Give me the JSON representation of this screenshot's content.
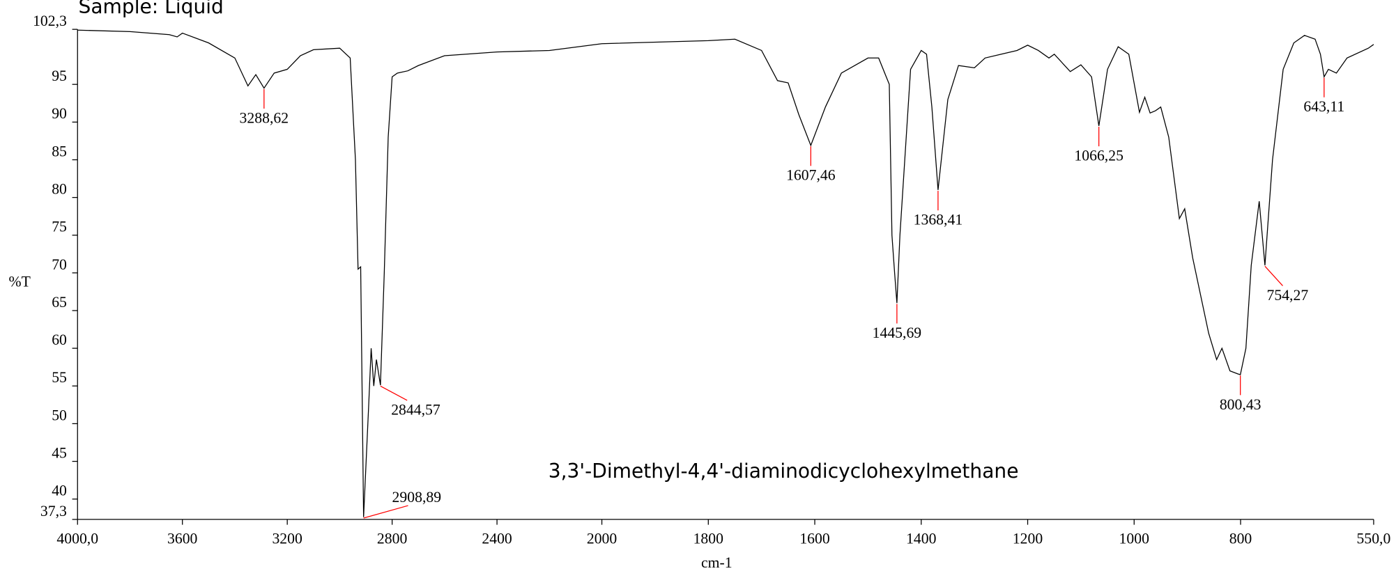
{
  "chart_data": {
    "type": "line",
    "title": "Sample: Liquid",
    "annotation": "3,3'-Dimethyl-4,4'-diaminodicyclohexylmethane",
    "xlabel": "cm-1",
    "ylabel": "%T",
    "xlim": [
      4000,
      550
    ],
    "x_scale_break": 2000,
    "ylim": [
      37.3,
      102.3
    ],
    "xticks": [
      {
        "value": 4000,
        "label": "4000,0"
      },
      3600,
      3200,
      2800,
      2400,
      2000,
      1800,
      1600,
      1400,
      1200,
      1000,
      800,
      {
        "value": 550,
        "label": "550,0"
      }
    ],
    "yticks": [
      {
        "value": 37.3,
        "label": "37,3"
      },
      40,
      45,
      50,
      55,
      60,
      65,
      70,
      75,
      80,
      85,
      90,
      95,
      {
        "value": 102.3,
        "label": "102,3"
      }
    ],
    "series": [
      {
        "color": "#000000",
        "x": [
          4000,
          3800,
          3650,
          3620,
          3600,
          3500,
          3400,
          3350,
          3320,
          3288.62,
          3250,
          3200,
          3150,
          3100,
          3000,
          2960,
          2940,
          2930,
          2920,
          2908.89,
          2890,
          2880,
          2870,
          2860,
          2844.57,
          2830,
          2815,
          2800,
          2780,
          2740,
          2700,
          2600,
          2400,
          2200,
          2000,
          1800,
          1750,
          1700,
          1670,
          1650,
          1630,
          1607.46,
          1580,
          1550,
          1500,
          1480,
          1460,
          1455,
          1450,
          1445.69,
          1440,
          1420,
          1400,
          1390,
          1380,
          1368.41,
          1350,
          1330,
          1300,
          1280,
          1250,
          1220,
          1200,
          1180,
          1160,
          1150,
          1120,
          1100,
          1080,
          1066.25,
          1050,
          1030,
          1010,
          990,
          980,
          970,
          960,
          950,
          935,
          915,
          905,
          890,
          860,
          845,
          835,
          820,
          805,
          800.43,
          790,
          780,
          765,
          754.27,
          740,
          720,
          700,
          680,
          660,
          650,
          643.11,
          635,
          620,
          600,
          560,
          550
        ],
        "values": [
          102.2,
          102.0,
          101.6,
          101.3,
          101.8,
          100.5,
          98.5,
          94.8,
          96.3,
          94.5,
          96.5,
          97.0,
          98.8,
          99.6,
          99.8,
          98.5,
          85,
          70.5,
          70.8,
          37.6,
          52,
          60,
          55,
          58.5,
          55.1,
          70,
          88,
          96,
          96.5,
          96.8,
          97.5,
          98.8,
          99.3,
          99.5,
          100.4,
          100.8,
          101.0,
          99.5,
          95.5,
          95.2,
          91,
          86.9,
          92,
          96.5,
          98.5,
          98.5,
          95,
          75,
          70,
          66.0,
          75,
          97,
          99.5,
          99,
          92,
          81,
          93,
          97.5,
          97.2,
          98.5,
          99,
          99.5,
          100.2,
          99.5,
          98.5,
          99,
          96.7,
          97.6,
          96,
          89.5,
          97,
          100,
          99,
          91.3,
          93.3,
          91.2,
          91.5,
          92,
          88,
          77.2,
          78.5,
          72,
          62,
          58.5,
          60,
          57,
          56.6,
          56.5,
          60,
          71,
          79.5,
          71,
          85,
          97,
          100.5,
          101.5,
          101,
          99,
          96.0,
          97,
          96.5,
          98.5,
          99.8,
          100.3
        ]
      }
    ],
    "peaks": {
      "color": "#ff0000",
      "x": [
        3288.62,
        2908.89,
        2844.57,
        1607.46,
        1445.69,
        1368.41,
        1066.25,
        800.43,
        754.27,
        643.11
      ],
      "y": [
        94.5,
        37.6,
        55.1,
        86.9,
        66.0,
        81,
        89.5,
        56.5,
        71,
        96.0
      ],
      "labels": [
        "3288,62",
        "2908,89",
        "2844,57",
        "1607,46",
        "1445,69",
        "1368,41",
        "1066,25",
        "800,43",
        "754,27",
        "643,11"
      ]
    }
  }
}
